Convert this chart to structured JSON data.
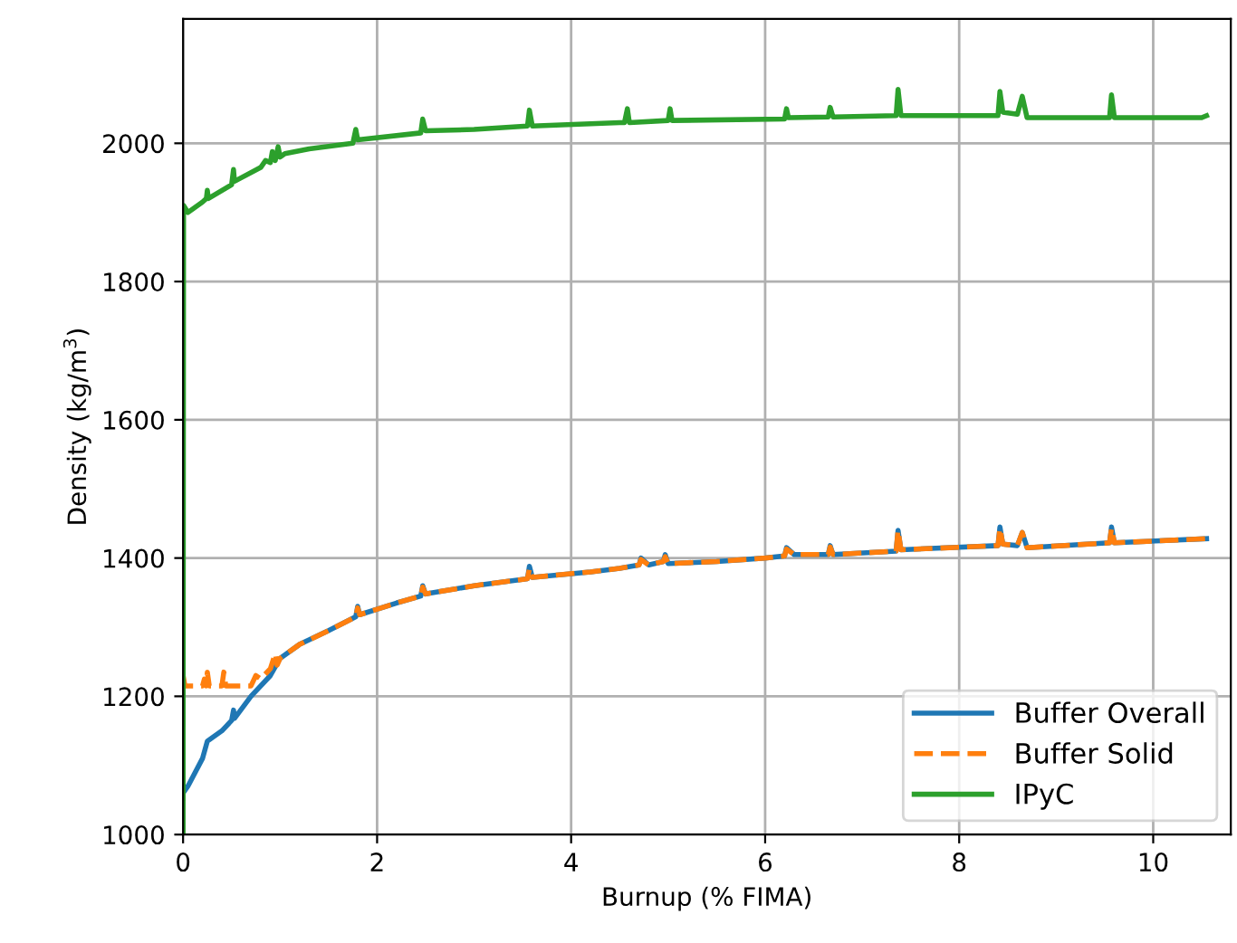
{
  "chart_data": {
    "type": "line",
    "xlabel": "Burnup (% FIMA)",
    "ylabel": "Density (kg/m$^{3}$)",
    "xlim": [
      0,
      10.8
    ],
    "xticks": [
      0,
      2,
      4,
      6,
      8,
      10
    ],
    "ylim": [
      1000,
      2180
    ],
    "yticks": [
      1000,
      1200,
      1400,
      1600,
      1800,
      2000
    ],
    "grid": true,
    "legend": "bottom right",
    "series": [
      {
        "name": "Buffer Overall",
        "color": "#1f77b4",
        "line_style": "solid",
        "x": [
          0,
          0.05,
          0.2,
          0.25,
          0.4,
          0.5,
          0.52,
          0.53,
          0.7,
          0.9,
          1.0,
          1.2,
          1.5,
          1.78,
          1.8,
          1.82,
          2.2,
          2.45,
          2.47,
          2.5,
          3.0,
          3.55,
          3.57,
          3.6,
          4.2,
          4.5,
          4.7,
          4.72,
          4.8,
          4.95,
          4.97,
          5.0,
          5.5,
          6.0,
          6.2,
          6.22,
          6.3,
          6.65,
          6.67,
          6.7,
          7.35,
          7.37,
          7.4,
          8.4,
          8.42,
          8.45,
          8.6,
          8.65,
          8.7,
          9.55,
          9.57,
          9.6,
          10.55
        ],
        "values": [
          1060,
          1070,
          1110,
          1135,
          1150,
          1165,
          1180,
          1168,
          1200,
          1230,
          1255,
          1275,
          1295,
          1315,
          1330,
          1318,
          1335,
          1345,
          1360,
          1348,
          1360,
          1370,
          1388,
          1372,
          1380,
          1385,
          1390,
          1400,
          1390,
          1395,
          1405,
          1392,
          1395,
          1400,
          1403,
          1415,
          1405,
          1405,
          1418,
          1405,
          1410,
          1440,
          1412,
          1418,
          1445,
          1420,
          1418,
          1437,
          1415,
          1422,
          1445,
          1422,
          1428
        ]
      },
      {
        "name": "Buffer Solid",
        "color": "#ff7f0e",
        "line_style": "dashed",
        "x": [
          0,
          0.02,
          0.2,
          0.22,
          0.24,
          0.25,
          0.27,
          0.4,
          0.42,
          0.44,
          0.7,
          0.75,
          0.8,
          0.9,
          0.95,
          0.97,
          1.0,
          1.2,
          1.5,
          1.78,
          1.8,
          1.82,
          2.2,
          2.45,
          2.47,
          2.5,
          3.0,
          3.55,
          3.57,
          3.6,
          4.2,
          4.5,
          4.7,
          4.72,
          4.8,
          4.95,
          4.97,
          5.0,
          5.5,
          6.0,
          6.2,
          6.22,
          6.3,
          6.65,
          6.67,
          6.7,
          7.35,
          7.37,
          7.4,
          8.4,
          8.42,
          8.45,
          8.6,
          8.65,
          8.7,
          9.55,
          9.57,
          9.6,
          10.55
        ],
        "values": [
          1230,
          1215,
          1215,
          1225,
          1215,
          1235,
          1215,
          1215,
          1235,
          1215,
          1215,
          1230,
          1225,
          1240,
          1262,
          1245,
          1255,
          1275,
          1295,
          1315,
          1328,
          1318,
          1335,
          1345,
          1358,
          1348,
          1360,
          1370,
          1385,
          1372,
          1380,
          1385,
          1390,
          1398,
          1390,
          1395,
          1402,
          1392,
          1395,
          1400,
          1403,
          1413,
          1405,
          1405,
          1416,
          1405,
          1410,
          1440,
          1412,
          1418,
          1443,
          1420,
          1418,
          1437,
          1415,
          1422,
          1443,
          1422,
          1428
        ]
      },
      {
        "name": "IPyC",
        "color": "#2ca02c",
        "line_style": "solid",
        "x": [
          0,
          0.005,
          0.05,
          0.2,
          0.24,
          0.25,
          0.26,
          0.5,
          0.52,
          0.53,
          0.8,
          0.85,
          0.9,
          0.92,
          0.95,
          0.98,
          1.0,
          1.05,
          1.3,
          1.75,
          1.78,
          1.8,
          2.45,
          2.47,
          2.5,
          3.0,
          3.55,
          3.57,
          3.6,
          4.5,
          4.55,
          4.58,
          4.6,
          5.0,
          5.02,
          5.04,
          6.2,
          6.22,
          6.24,
          6.65,
          6.67,
          6.7,
          7.35,
          7.37,
          7.4,
          8.4,
          8.42,
          8.45,
          8.6,
          8.65,
          8.7,
          9.55,
          9.57,
          9.6,
          10.5,
          10.55
        ],
        "values": [
          1000,
          1910,
          1900,
          1915,
          1920,
          1932,
          1920,
          1940,
          1962,
          1945,
          1965,
          1975,
          1972,
          1988,
          1975,
          1995,
          1980,
          1985,
          1992,
          2000,
          2020,
          2005,
          2015,
          2035,
          2018,
          2020,
          2025,
          2048,
          2025,
          2030,
          2030,
          2050,
          2030,
          2033,
          2050,
          2033,
          2035,
          2050,
          2037,
          2038,
          2052,
          2038,
          2040,
          2078,
          2040,
          2040,
          2075,
          2045,
          2042,
          2068,
          2037,
          2037,
          2070,
          2037,
          2037,
          2040
        ]
      }
    ]
  }
}
